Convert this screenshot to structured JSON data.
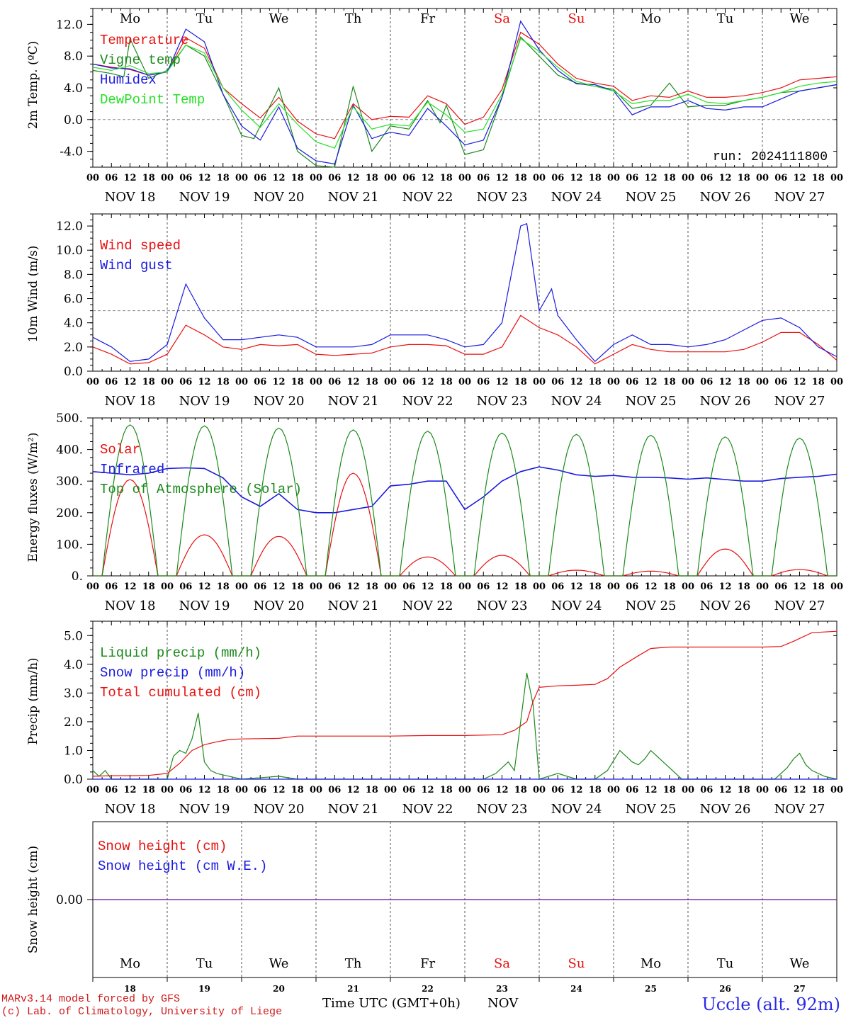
{
  "run_label": "run: 2024111800",
  "day_names": [
    "Mo",
    "Tu",
    "We",
    "Th",
    "Fr",
    "Sa",
    "Su",
    "Mo",
    "Tu",
    "We"
  ],
  "weekend_days": [
    "Sa",
    "Su"
  ],
  "date_labels": [
    "NOV 18",
    "NOV 19",
    "NOV 20",
    "NOV 21",
    "NOV 22",
    "NOV 23",
    "NOV 24",
    "NOV 25",
    "NOV 26",
    "NOV 27"
  ],
  "hour_ticks": [
    "00",
    "06",
    "12",
    "18"
  ],
  "last_hour": "00",
  "day_numbers": [
    "18",
    "19",
    "20",
    "21",
    "22",
    "23",
    "24",
    "25",
    "26",
    "27"
  ],
  "xlabel": "Time UTC (GMT+0h)",
  "x_month": "NOV",
  "footer_model": "MARv3.14 model forced by GFS",
  "footer_copyright": "(c) Lab. of Climatology, University of Liege",
  "station": "Uccle (alt. 92m)",
  "colors": {
    "red": "#e81010",
    "green": "#1c8a1c",
    "blue": "#1a1ae0",
    "lightgreen": "#28e028",
    "purple": "#7a2aa8"
  },
  "chart_data": [
    {
      "type": "line",
      "ylabel": "2m Temp. (ºC)",
      "ylim": [
        -6,
        14
      ],
      "yticks": [
        12,
        8,
        4,
        0,
        -4
      ],
      "ytick_labels": [
        "12.0",
        "8.0",
        "4.0",
        "0.0",
        "-4.0"
      ],
      "ref_line": 0,
      "x_unit": "hours since NOV 18 00 UTC",
      "series": [
        {
          "name": "Temperature",
          "color": "red",
          "x": [
            0,
            6,
            12,
            18,
            24,
            30,
            36,
            42,
            48,
            54,
            60,
            66,
            72,
            78,
            84,
            90,
            96,
            102,
            108,
            114,
            120,
            126,
            132,
            138,
            144,
            150,
            156,
            162,
            168,
            174,
            180,
            186,
            192,
            198,
            204,
            210,
            216,
            222,
            228,
            234,
            240
          ],
          "y": [
            7.0,
            6.6,
            6.3,
            5.6,
            6.0,
            10.3,
            9.0,
            4.0,
            2.0,
            0.2,
            2.8,
            -0.2,
            -1.8,
            -2.4,
            2.0,
            0.0,
            0.4,
            0.3,
            3.0,
            2.0,
            -0.6,
            0.3,
            3.8,
            11.0,
            9.5,
            7.0,
            5.2,
            4.6,
            4.2,
            2.4,
            3.0,
            2.8,
            3.6,
            2.8,
            2.8,
            3.0,
            3.4,
            4.0,
            5.0,
            5.2,
            5.4
          ]
        },
        {
          "name": "Vigne temp",
          "color": "green",
          "x": [
            0,
            6,
            10,
            12,
            18,
            24,
            30,
            36,
            42,
            48,
            52,
            54,
            60,
            66,
            72,
            78,
            84,
            90,
            96,
            102,
            108,
            112,
            114,
            120,
            126,
            132,
            138,
            144,
            150,
            156,
            162,
            168,
            174,
            180,
            186,
            192,
            198,
            204,
            210,
            216,
            222,
            228,
            234,
            240
          ],
          "y": [
            6.2,
            5.8,
            5.4,
            10.2,
            5.2,
            6.2,
            9.4,
            8.0,
            3.2,
            -2.0,
            -2.4,
            -0.8,
            4.0,
            -4.0,
            -5.8,
            -6.0,
            4.2,
            -4.0,
            -0.8,
            -1.2,
            2.4,
            -0.4,
            1.8,
            -4.4,
            -3.8,
            2.8,
            10.4,
            8.0,
            5.6,
            4.6,
            4.2,
            3.8,
            1.4,
            1.8,
            4.6,
            1.6,
            1.8,
            1.8,
            2.4,
            2.8,
            3.4,
            3.6,
            4.0,
            4.4
          ]
        },
        {
          "name": "Humidex",
          "color": "blue",
          "x": [
            0,
            6,
            12,
            18,
            24,
            30,
            36,
            42,
            48,
            54,
            60,
            66,
            72,
            78,
            84,
            90,
            96,
            102,
            108,
            114,
            120,
            126,
            132,
            138,
            144,
            150,
            156,
            162,
            168,
            174,
            180,
            186,
            192,
            198,
            204,
            210,
            216,
            222,
            228,
            234,
            240
          ],
          "y": [
            7.0,
            6.5,
            6.4,
            5.6,
            6.0,
            11.4,
            9.8,
            3.2,
            -0.8,
            -2.6,
            1.6,
            -3.6,
            -5.2,
            -5.6,
            1.8,
            -2.4,
            -1.6,
            -2.0,
            1.4,
            -0.8,
            -3.2,
            -2.6,
            2.8,
            12.4,
            8.8,
            6.2,
            4.5,
            4.4,
            3.6,
            0.6,
            1.6,
            1.6,
            2.4,
            1.4,
            1.2,
            1.6,
            1.6,
            2.6,
            3.6,
            4.0,
            4.4
          ]
        },
        {
          "name": "DewPoint Temp",
          "color": "lightgreen",
          "x": [
            0,
            6,
            12,
            18,
            24,
            30,
            36,
            42,
            48,
            54,
            60,
            66,
            72,
            78,
            84,
            90,
            96,
            102,
            108,
            114,
            120,
            126,
            132,
            138,
            144,
            150,
            156,
            162,
            168,
            174,
            180,
            186,
            192,
            198,
            204,
            210,
            216,
            222,
            228,
            234,
            240
          ],
          "y": [
            6.6,
            6.2,
            6.8,
            5.8,
            6.0,
            9.4,
            8.4,
            4.0,
            1.2,
            -1.0,
            2.0,
            -0.6,
            -2.8,
            -3.6,
            1.6,
            -1.2,
            -0.6,
            -0.8,
            2.2,
            0.6,
            -1.6,
            -1.2,
            3.2,
            10.2,
            8.6,
            6.6,
            4.8,
            4.2,
            3.6,
            2.0,
            2.4,
            2.4,
            3.2,
            2.2,
            2.0,
            2.4,
            2.8,
            3.4,
            4.2,
            4.6,
            4.8
          ]
        }
      ]
    },
    {
      "type": "line",
      "ylabel": "10m Wind (m/s)",
      "ylim": [
        0,
        13
      ],
      "yticks": [
        12,
        10,
        8,
        6,
        4,
        2,
        0
      ],
      "ytick_labels": [
        "12.0",
        "10.0",
        "8.0",
        "6.0",
        "4.0",
        "2.0",
        "0.0"
      ],
      "ref_line": 5,
      "x_unit": "hours since NOV 18 00 UTC",
      "series": [
        {
          "name": "Wind speed",
          "color": "red",
          "x": [
            0,
            6,
            12,
            18,
            24,
            30,
            36,
            42,
            48,
            54,
            60,
            66,
            72,
            78,
            84,
            90,
            96,
            102,
            108,
            114,
            120,
            126,
            132,
            138,
            144,
            150,
            156,
            162,
            168,
            174,
            180,
            186,
            192,
            198,
            204,
            210,
            216,
            222,
            228,
            234,
            240
          ],
          "y": [
            2.0,
            1.4,
            0.6,
            0.7,
            1.4,
            3.8,
            3.0,
            2.0,
            1.8,
            2.2,
            2.1,
            2.2,
            1.4,
            1.3,
            1.4,
            1.5,
            2.0,
            2.2,
            2.2,
            2.1,
            1.4,
            1.4,
            2.0,
            4.6,
            3.6,
            3.0,
            2.0,
            0.6,
            1.4,
            2.2,
            1.8,
            1.6,
            1.6,
            1.6,
            1.6,
            1.8,
            2.4,
            3.2,
            3.2,
            2.2,
            0.9
          ]
        },
        {
          "name": "Wind gust",
          "color": "blue",
          "x": [
            0,
            6,
            12,
            18,
            24,
            30,
            36,
            42,
            48,
            54,
            60,
            66,
            72,
            78,
            84,
            90,
            96,
            102,
            108,
            114,
            120,
            126,
            132,
            138,
            140,
            144,
            148,
            150,
            156,
            162,
            168,
            174,
            180,
            186,
            192,
            198,
            204,
            210,
            216,
            222,
            228,
            234,
            240
          ],
          "y": [
            2.8,
            2.0,
            0.8,
            1.0,
            2.2,
            7.2,
            4.4,
            2.6,
            2.6,
            2.8,
            3.0,
            2.8,
            2.0,
            2.0,
            2.0,
            2.2,
            3.0,
            3.0,
            3.0,
            2.6,
            2.0,
            2.2,
            4.0,
            12.0,
            12.2,
            5.0,
            6.8,
            4.6,
            2.6,
            0.8,
            2.2,
            3.0,
            2.2,
            2.2,
            2.0,
            2.2,
            2.6,
            3.4,
            4.2,
            4.4,
            3.6,
            2.0,
            1.2
          ]
        }
      ]
    },
    {
      "type": "line",
      "ylabel": "Energy fluxes (W/m²)",
      "ylim": [
        0,
        500
      ],
      "yticks": [
        500,
        400,
        300,
        200,
        100,
        0
      ],
      "ytick_labels": [
        "500.",
        "400.",
        "300.",
        "200.",
        "100.",
        "0."
      ],
      "x_unit": "hours since NOV 18 00 UTC",
      "series": [
        {
          "name": "Solar",
          "color": "red",
          "peak_hours": [
            12,
            36,
            60,
            84,
            108,
            132,
            156,
            180,
            204,
            228
          ],
          "peak_values": [
            305,
            130,
            125,
            325,
            60,
            65,
            18,
            15,
            85,
            20
          ]
        },
        {
          "name": "Infrared",
          "color": "blue",
          "x": [
            0,
            6,
            12,
            18,
            24,
            30,
            36,
            42,
            48,
            54,
            60,
            66,
            72,
            78,
            84,
            90,
            96,
            102,
            108,
            114,
            120,
            126,
            132,
            138,
            144,
            150,
            156,
            162,
            168,
            174,
            180,
            186,
            192,
            198,
            204,
            210,
            216,
            222,
            228,
            234,
            240
          ],
          "y": [
            330,
            325,
            320,
            325,
            340,
            342,
            340,
            310,
            250,
            220,
            260,
            210,
            200,
            200,
            210,
            220,
            285,
            290,
            300,
            300,
            210,
            250,
            300,
            330,
            345,
            335,
            320,
            315,
            318,
            312,
            312,
            310,
            306,
            310,
            305,
            300,
            300,
            308,
            312,
            315,
            322
          ]
        },
        {
          "name": "Top of Atmosphere (Solar)",
          "color": "green",
          "peak_hours": [
            12,
            36,
            60,
            84,
            108,
            132,
            156,
            180,
            204,
            228
          ],
          "peak_values": [
            478,
            475,
            468,
            462,
            458,
            452,
            448,
            445,
            440,
            436
          ]
        }
      ]
    },
    {
      "type": "line",
      "ylabel": "Precip (mm/h)",
      "ylim": [
        0,
        5.5
      ],
      "yticks": [
        5,
        4,
        3,
        2,
        1,
        0
      ],
      "ytick_labels": [
        "5.0",
        "4.0",
        "3.0",
        "2.0",
        "1.0",
        "0.0"
      ],
      "x_unit": "hours since NOV 18 00 UTC",
      "series": [
        {
          "name": "Liquid precip (mm/h)",
          "color": "green",
          "x": [
            0,
            2,
            4,
            6,
            10,
            24,
            26,
            28,
            30,
            32,
            34,
            36,
            38,
            40,
            44,
            48,
            60,
            66,
            120,
            126,
            130,
            134,
            136,
            138,
            140,
            142,
            144,
            150,
            156,
            162,
            166,
            170,
            174,
            176,
            178,
            180,
            186,
            190,
            192,
            196,
            200,
            202,
            214,
            220,
            224,
            226,
            228,
            230,
            232,
            236,
            240
          ],
          "y": [
            0.3,
            0.1,
            0.3,
            0,
            0,
            0,
            0.8,
            1.0,
            0.9,
            1.4,
            2.3,
            0.6,
            0.3,
            0.2,
            0.1,
            0,
            0.1,
            0,
            0,
            0,
            0.2,
            0.6,
            0.3,
            2.0,
            3.7,
            2.6,
            0,
            0.2,
            0,
            0,
            0.3,
            1.0,
            0.6,
            0.5,
            0.7,
            1.0,
            0.4,
            0,
            0,
            0,
            0,
            0,
            0,
            0,
            0.4,
            0.7,
            0.9,
            0.5,
            0.3,
            0.1,
            0
          ]
        },
        {
          "name": "Snow precip (mm/h)",
          "color": "blue",
          "x": [
            0,
            240
          ],
          "y": [
            0,
            0
          ]
        },
        {
          "name": "Total cumulated (cm)",
          "color": "red",
          "x": [
            0,
            6,
            12,
            18,
            24,
            28,
            32,
            36,
            40,
            44,
            48,
            60,
            66,
            72,
            96,
            108,
            120,
            132,
            136,
            140,
            142,
            144,
            150,
            156,
            162,
            166,
            170,
            176,
            180,
            186,
            192,
            204,
            216,
            222,
            226,
            228,
            232,
            240
          ],
          "y": [
            0.1,
            0.12,
            0.12,
            0.13,
            0.2,
            0.55,
            1.0,
            1.2,
            1.3,
            1.38,
            1.4,
            1.42,
            1.5,
            1.5,
            1.5,
            1.52,
            1.52,
            1.55,
            1.7,
            2.0,
            2.7,
            3.2,
            3.25,
            3.27,
            3.3,
            3.5,
            3.9,
            4.3,
            4.55,
            4.6,
            4.6,
            4.6,
            4.6,
            4.62,
            4.8,
            4.9,
            5.1,
            5.15
          ]
        }
      ]
    },
    {
      "type": "line",
      "ylabel": "Snow height (cm)",
      "yticks": [
        0
      ],
      "ytick_labels": [
        "0.00"
      ],
      "x_unit": "hours since NOV 18 00 UTC",
      "series": [
        {
          "name": "Snow height (cm)",
          "color": "red",
          "x": [
            0,
            240
          ],
          "y": [
            0,
            0
          ]
        },
        {
          "name": "Snow height (cm W.E.)",
          "color": "blue",
          "x": [
            0,
            240
          ],
          "y": [
            0,
            0
          ]
        }
      ]
    }
  ]
}
